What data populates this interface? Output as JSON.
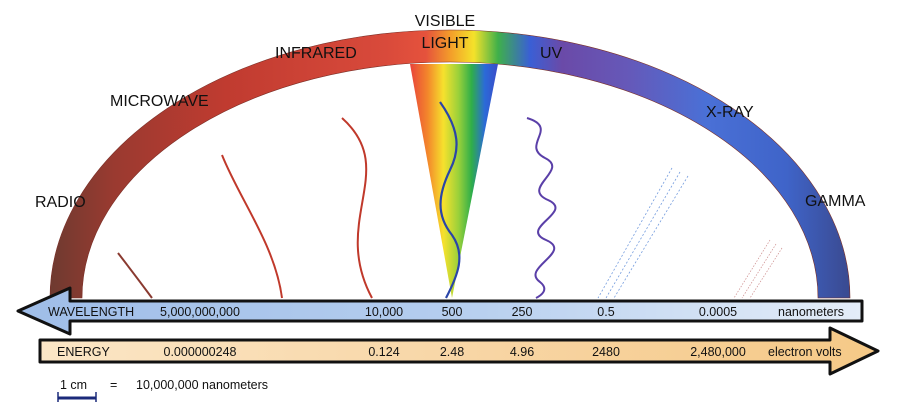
{
  "regions": {
    "radio": "RADIO",
    "microwave": "MICROWAVE",
    "infrared": "INFRARED",
    "visible_line1": "VISIBLE",
    "visible_line2": "LIGHT",
    "uv": "UV",
    "xray": "X-RAY",
    "gamma": "GAMMA"
  },
  "wavelength_bar": {
    "label": "WAVELENGTH",
    "values": [
      "5,000,000,000",
      "10,000",
      "500",
      "250",
      "0.5",
      "0.0005"
    ],
    "unit": "nanometers"
  },
  "energy_bar": {
    "label": "ENERGY",
    "values": [
      "0.000000248",
      "0.124",
      "2.48",
      "4.96",
      "2480",
      "2,480,000"
    ],
    "unit": "electron volts"
  },
  "scale_legend": {
    "length": "1 cm",
    "equals": "=",
    "value": "10,000,000 nanometers"
  },
  "colors": {
    "radio": "#7a3a2e",
    "microwave": "#c0392b",
    "infrared": "#d84a3c",
    "uv": "#7d4fa8",
    "xray": "#4a6fd8",
    "gamma": "#3b5bbd",
    "wavelength_bar": "#8fb3e6",
    "energy_bar": "#f7d7a8",
    "scale_bar": "#1b2a7a"
  }
}
